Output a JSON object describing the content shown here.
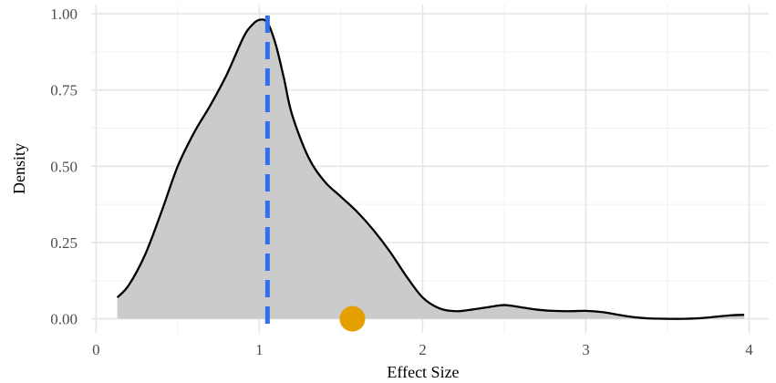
{
  "chart_data": {
    "type": "area",
    "xlabel": "Effect Size",
    "ylabel": "Density",
    "xlim": [
      -0.03,
      4.12
    ],
    "ylim": [
      -0.046,
      1.03
    ],
    "x_ticks": [
      0,
      1,
      2,
      3,
      4
    ],
    "x_tick_labels": [
      "0",
      "1",
      "2",
      "3",
      "4"
    ],
    "y_ticks": [
      0.0,
      0.25,
      0.5,
      0.75,
      1.0
    ],
    "y_tick_labels": [
      "0.00",
      "0.25",
      "0.50",
      "0.75",
      "1.00"
    ],
    "grid": true,
    "density_curve": {
      "x": [
        0.13,
        0.2,
        0.3,
        0.4,
        0.5,
        0.6,
        0.7,
        0.8,
        0.9,
        0.95,
        1.0,
        1.05,
        1.1,
        1.15,
        1.2,
        1.3,
        1.4,
        1.5,
        1.6,
        1.7,
        1.8,
        1.9,
        2.0,
        2.1,
        2.2,
        2.3,
        2.4,
        2.5,
        2.6,
        2.7,
        2.8,
        2.9,
        3.0,
        3.1,
        3.2,
        3.3,
        3.4,
        3.5,
        3.6,
        3.7,
        3.8,
        3.9,
        3.97
      ],
      "y": [
        0.07,
        0.11,
        0.21,
        0.35,
        0.5,
        0.61,
        0.7,
        0.8,
        0.92,
        0.96,
        0.98,
        0.97,
        0.9,
        0.79,
        0.67,
        0.53,
        0.45,
        0.4,
        0.35,
        0.29,
        0.22,
        0.14,
        0.07,
        0.035,
        0.025,
        0.03,
        0.038,
        0.045,
        0.038,
        0.03,
        0.026,
        0.025,
        0.026,
        0.022,
        0.013,
        0.005,
        0.001,
        0.0,
        0.0,
        0.002,
        0.007,
        0.012,
        0.013
      ],
      "fill": "#cbcbcb",
      "stroke": "#000000"
    },
    "reference_line": {
      "x": 1.05,
      "color": "#2f6ff0",
      "style": "dashed"
    },
    "point": {
      "x": 1.57,
      "y": 0.0,
      "color": "#e59f00"
    }
  }
}
